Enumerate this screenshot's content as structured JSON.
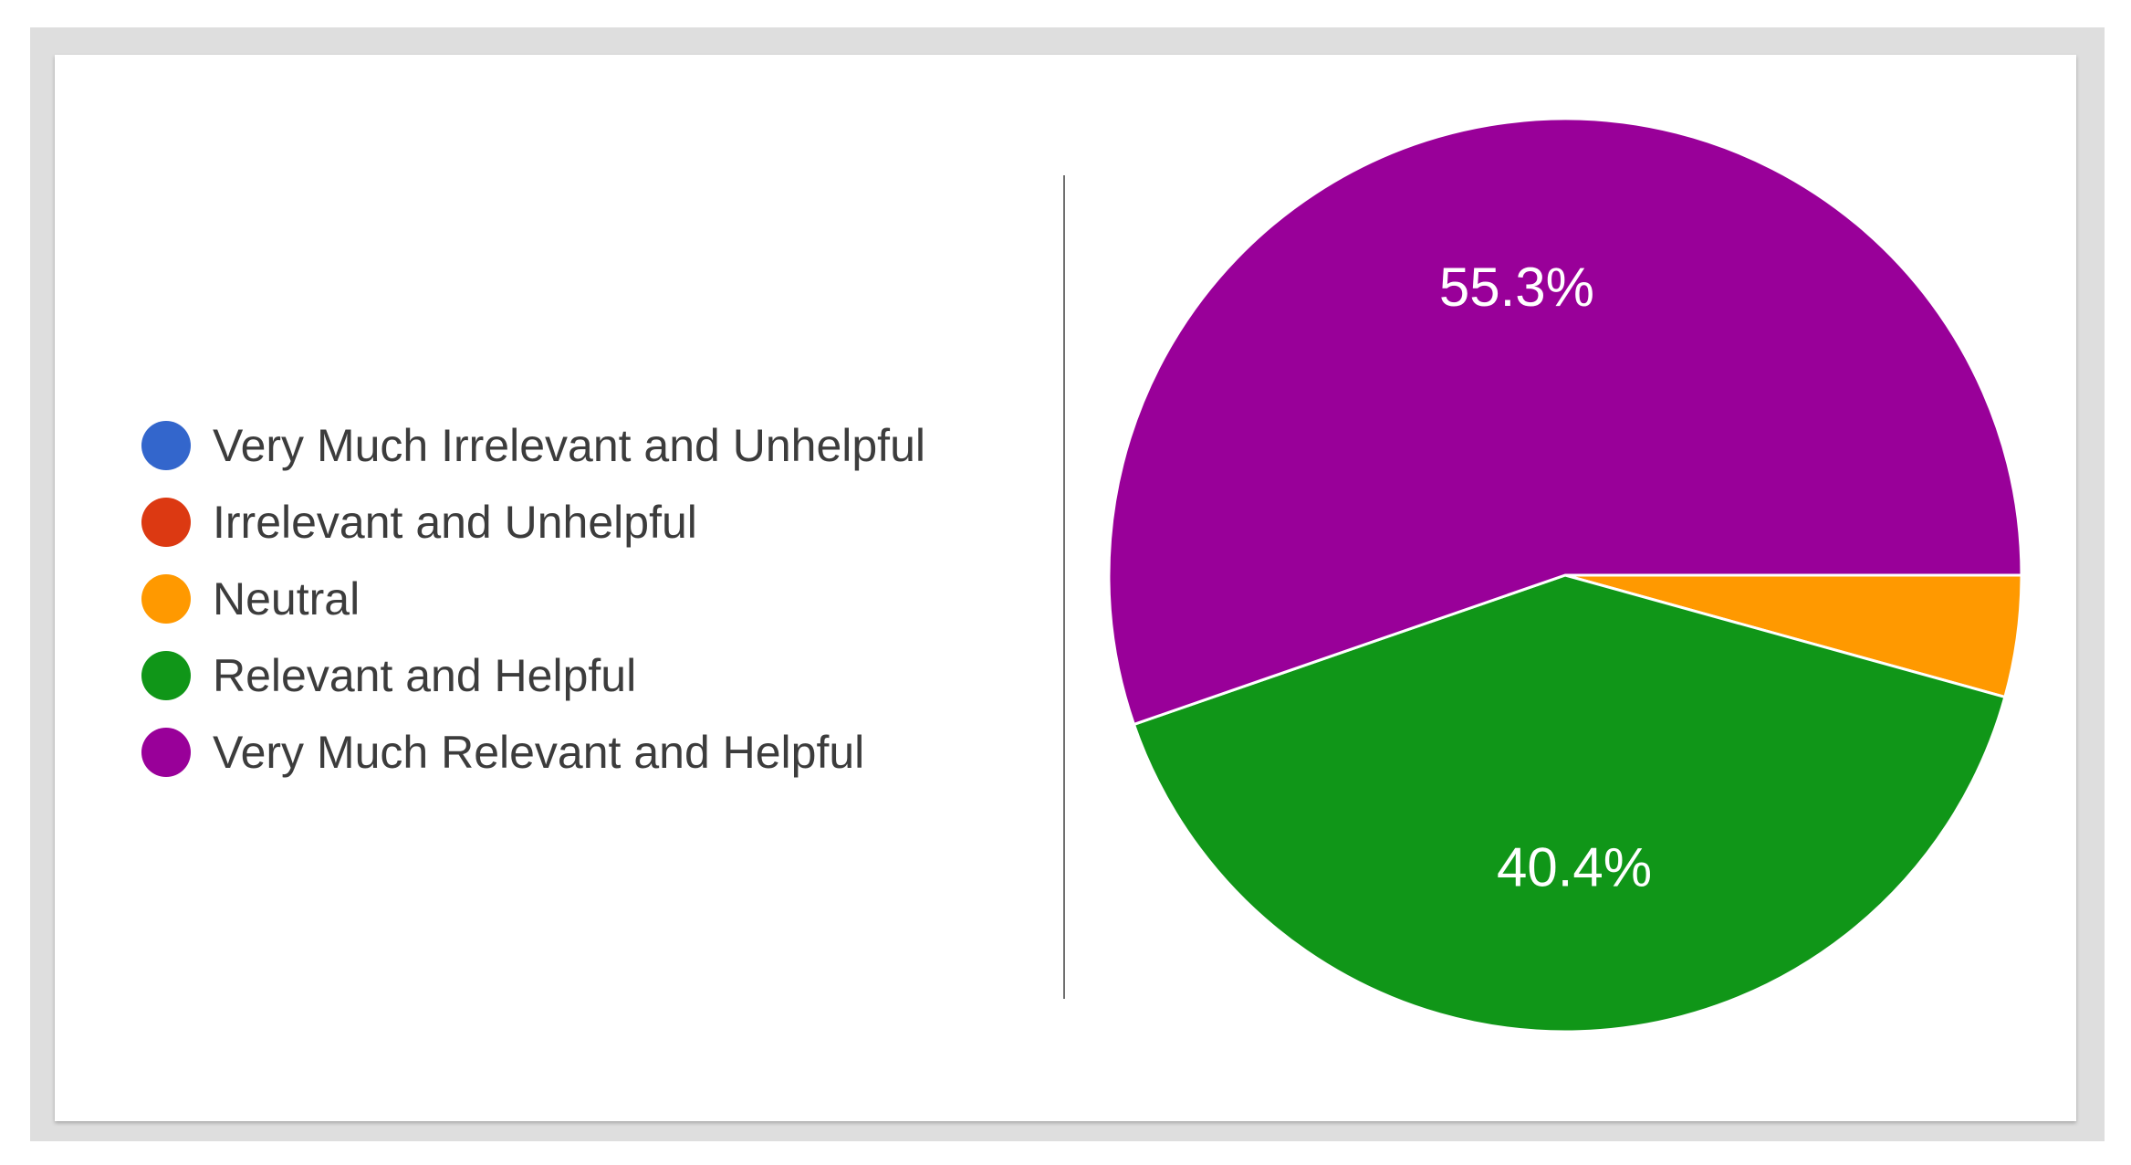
{
  "chart_data": {
    "type": "pie",
    "categories": [
      "Very Much Irrelevant and Unhelpful",
      "Irrelevant and Unhelpful",
      "Neutral",
      "Relevant and Helpful",
      "Very Much Relevant and Helpful"
    ],
    "values": [
      0,
      0,
      4.3,
      40.4,
      55.3
    ],
    "value_labels": [
      "",
      "",
      "",
      "40.4%",
      "55.3%"
    ],
    "colors": [
      "#3366cc",
      "#dc3912",
      "#ff9900",
      "#109618",
      "#990099"
    ],
    "legend": "left",
    "start_direction": "right",
    "slice_order": "clockwise"
  }
}
